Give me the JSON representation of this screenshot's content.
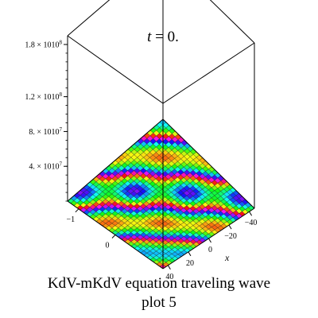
{
  "chart_data": {
    "type": "surface",
    "title": "t = 0.",
    "title_var": "t",
    "title_rest": " = 0.",
    "z_ticks": [
      "1.8 × 10108",
      "1.2 × 10108",
      "8. × 10107",
      "4. × 10107"
    ],
    "z_tick_values": [
      1.8e+108,
      1.2e+108,
      8e+107,
      4e+107
    ],
    "x_label": "x",
    "x_ticks": [
      "−40",
      "−20",
      "0",
      "20",
      "40"
    ],
    "x_tick_values": [
      -40,
      -20,
      0,
      20,
      40
    ],
    "y_ticks": [
      "−1",
      "0"
    ],
    "y_tick_values": [
      -1,
      0
    ],
    "x_range": [
      -45,
      45
    ],
    "y_range": [
      -1.3,
      1.3
    ],
    "zlim": [
      0,
      1.9e+108
    ],
    "box": true,
    "surface_colormap": "hue rainbow"
  },
  "caption": {
    "line1": "KdV-mKdV equation  traveling wave",
    "line2": "plot 5"
  }
}
